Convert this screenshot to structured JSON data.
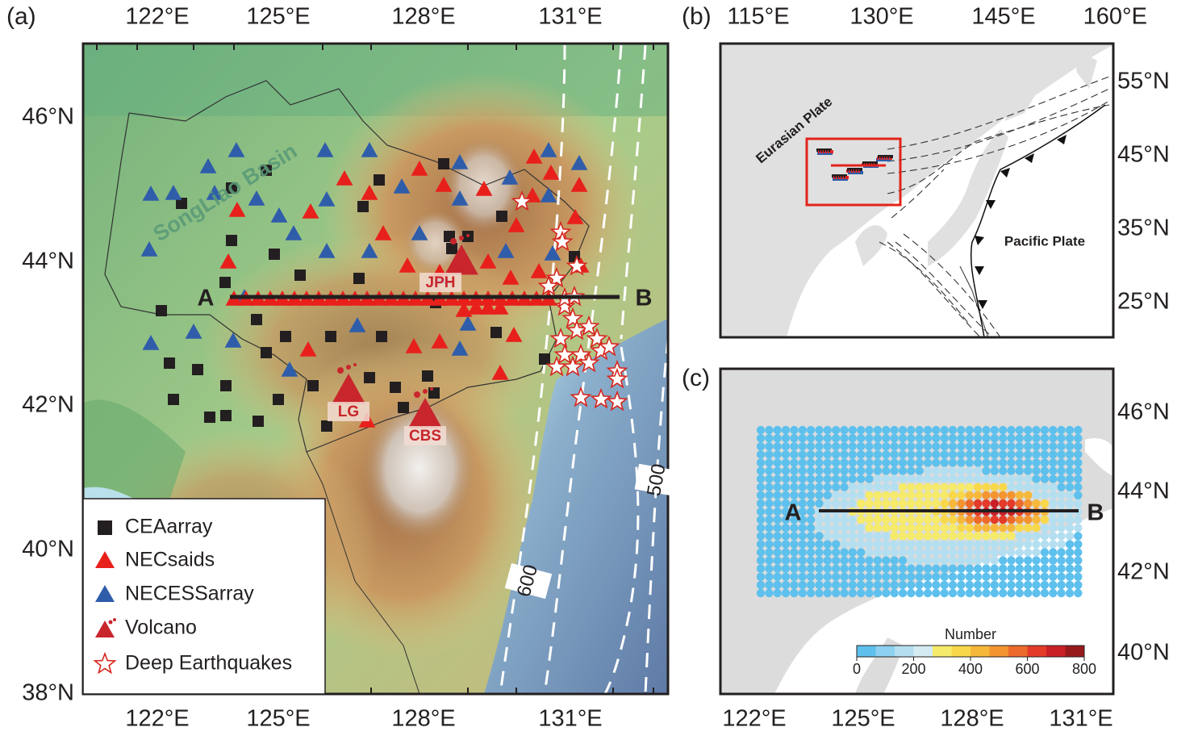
{
  "panel_a": {
    "label": "(a)",
    "x_ticks": [
      "122°E",
      "125°E",
      "128°E",
      "131°E"
    ],
    "y_ticks": [
      "46°N",
      "44°N",
      "42°N",
      "40°N",
      "38°N"
    ],
    "basin": "SongLiao Basin",
    "profile": {
      "start": "A",
      "end": "B"
    },
    "volcanoes": [
      "JPH",
      "LG",
      "CBS"
    ],
    "contours": [
      "600",
      "500"
    ],
    "legend": [
      "CEAarray",
      "NECsaids",
      "NECESSarray",
      "Volcano",
      "Deep Earthquakes"
    ]
  },
  "panel_b": {
    "label": "(b)",
    "x_ticks": [
      "115°E",
      "130°E",
      "145°E",
      "160°E"
    ],
    "y_ticks": [
      "55°N",
      "45°N",
      "35°N",
      "25°N"
    ],
    "plates": [
      "Eurasian Plate",
      "Pacific Plate"
    ]
  },
  "panel_c": {
    "label": "(c)",
    "x_ticks": [
      "122°E",
      "125°E",
      "128°E",
      "131°E"
    ],
    "y_ticks": [
      "46°N",
      "44°N",
      "42°N",
      "40°N"
    ],
    "profile": {
      "start": "A",
      "end": "B"
    },
    "colorbar": {
      "title": "Number",
      "ticks": [
        0,
        200,
        400,
        600,
        800
      ],
      "colors": [
        "#5ec0ec",
        "#8dd0ef",
        "#b4dff0",
        "#d4ebf1",
        "#f6ea6a",
        "#f8d84a",
        "#f6b83a",
        "#f39431",
        "#ec6a2c",
        "#e33a2a",
        "#c91f26",
        "#97191c"
      ]
    }
  }
}
